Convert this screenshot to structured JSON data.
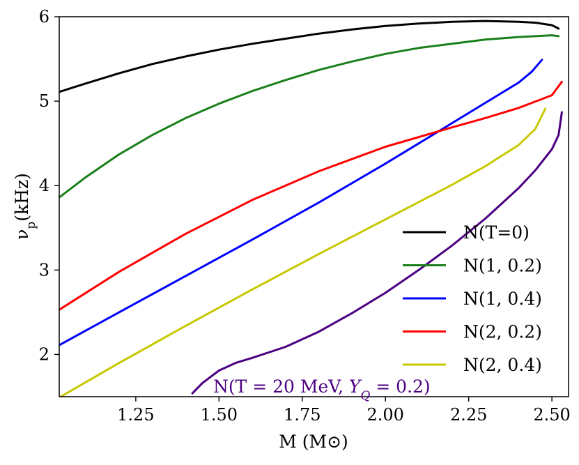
{
  "chart_data": {
    "type": "line",
    "xlabel": "M (M⊙)",
    "ylabel": "ν_p(kHz)",
    "xlim": [
      1.02,
      2.55
    ],
    "ylim": [
      1.5,
      6.0
    ],
    "xticks": [
      1.25,
      1.5,
      1.75,
      2.0,
      2.25,
      2.5
    ],
    "xtick_labels": [
      "1.25",
      "1.50",
      "1.75",
      "2.00",
      "2.25",
      "2.50"
    ],
    "yticks": [
      2,
      3,
      4,
      5,
      6
    ],
    "ytick_labels": [
      "2",
      "3",
      "4",
      "5",
      "6"
    ],
    "grid": false,
    "legend_position": "lower-right",
    "annotation": {
      "text": "N(T = 20 MeV, Y_Q = 0.2)",
      "color": "#4b0082"
    },
    "series": [
      {
        "name": "N(T=0)",
        "color": "#000000",
        "in_legend": true,
        "x": [
          1.02,
          1.1,
          1.2,
          1.3,
          1.4,
          1.5,
          1.6,
          1.7,
          1.8,
          1.9,
          2.0,
          2.1,
          2.2,
          2.3,
          2.4,
          2.45,
          2.5,
          2.52
        ],
        "y": [
          5.11,
          5.21,
          5.33,
          5.44,
          5.53,
          5.61,
          5.68,
          5.74,
          5.8,
          5.85,
          5.89,
          5.92,
          5.94,
          5.95,
          5.94,
          5.93,
          5.9,
          5.86
        ]
      },
      {
        "name": "N(1, 0.2)",
        "color": "#1a7f1a",
        "in_legend": true,
        "x": [
          1.02,
          1.1,
          1.2,
          1.3,
          1.4,
          1.5,
          1.6,
          1.7,
          1.8,
          1.9,
          2.0,
          2.1,
          2.2,
          2.3,
          2.4,
          2.45,
          2.5,
          2.52
        ],
        "y": [
          3.86,
          4.1,
          4.37,
          4.6,
          4.8,
          4.97,
          5.12,
          5.25,
          5.37,
          5.47,
          5.56,
          5.63,
          5.68,
          5.73,
          5.76,
          5.77,
          5.78,
          5.77
        ]
      },
      {
        "name": "N(1, 0.4)",
        "color": "#0000ff",
        "in_legend": true,
        "x": [
          1.02,
          1.2,
          1.4,
          1.6,
          1.8,
          2.0,
          2.1,
          2.2,
          2.3,
          2.4,
          2.44,
          2.47
        ],
        "y": [
          2.11,
          2.5,
          2.93,
          3.36,
          3.8,
          4.26,
          4.5,
          4.74,
          4.98,
          5.22,
          5.35,
          5.49
        ]
      },
      {
        "name": "N(2, 0.2)",
        "color": "#ff0000",
        "in_legend": true,
        "x": [
          1.02,
          1.2,
          1.4,
          1.6,
          1.8,
          2.0,
          2.2,
          2.3,
          2.4,
          2.5,
          2.53
        ],
        "y": [
          2.53,
          2.98,
          3.43,
          3.83,
          4.17,
          4.46,
          4.69,
          4.8,
          4.92,
          5.07,
          5.23
        ]
      },
      {
        "name": "N(2, 0.4)",
        "color": "#c8c800",
        "in_legend": true,
        "x": [
          1.02,
          1.2,
          1.4,
          1.6,
          1.8,
          2.0,
          2.2,
          2.3,
          2.4,
          2.45,
          2.48
        ],
        "y": [
          1.49,
          1.9,
          2.34,
          2.77,
          3.19,
          3.6,
          4.01,
          4.23,
          4.48,
          4.67,
          4.91
        ]
      },
      {
        "name": "N(T = 20 MeV, Y_Q = 0.2)",
        "color": "#4b0082",
        "in_legend": false,
        "x": [
          1.42,
          1.45,
          1.5,
          1.55,
          1.6,
          1.7,
          1.8,
          1.9,
          2.0,
          2.1,
          2.2,
          2.3,
          2.4,
          2.45,
          2.5,
          2.52,
          2.53
        ],
        "y": [
          1.54,
          1.66,
          1.81,
          1.9,
          1.96,
          2.09,
          2.27,
          2.49,
          2.73,
          3.0,
          3.29,
          3.61,
          3.97,
          4.18,
          4.43,
          4.6,
          4.87
        ]
      }
    ]
  }
}
